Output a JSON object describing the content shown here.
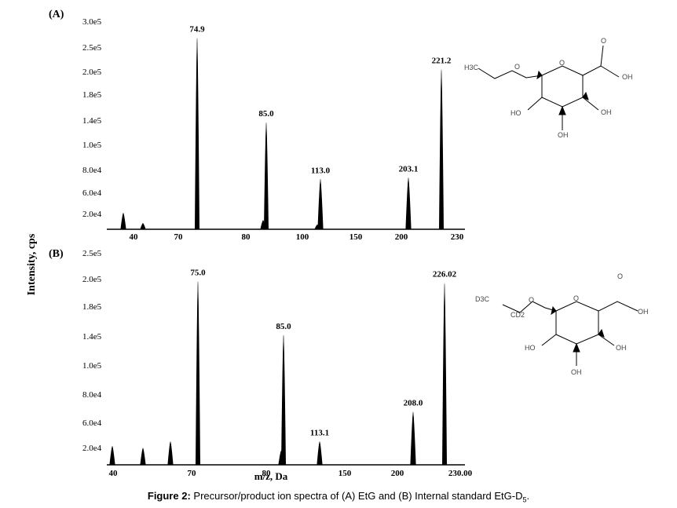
{
  "figure": {
    "ylabel": "Intensity, cps",
    "xlabel": "m/z, Da",
    "caption_label": "Figure 2:",
    "caption_text": "Precursor/product ion spectra of (A) EtG and (B) Internal standard EtG-D",
    "caption_sub": "5",
    "caption_end": "."
  },
  "chart_data": [
    {
      "type": "line",
      "panel_label": "(A)",
      "ylabel": "Intensity, cps",
      "xlabel": "m/z, Da",
      "x_tick_labels": [
        "40",
        "70",
        "80",
        "100",
        "150",
        "200",
        "230"
      ],
      "y_tick_labels": [
        "2.0e4",
        "6.0e4",
        "8.0e4",
        "1.0e5",
        "1.4e5",
        "1.8e5",
        "2.0e5",
        "2.5e5",
        "3.0e5"
      ],
      "peaks": [
        {
          "label": "",
          "value": 22000
        },
        {
          "label": "",
          "value": 8000
        },
        {
          "label": "74.9",
          "value": 260000
        },
        {
          "label": "",
          "value": 12000
        },
        {
          "label": "85.0",
          "value": 145000
        },
        {
          "label": "",
          "value": 6000
        },
        {
          "label": "113.0",
          "value": 68000
        },
        {
          "label": "203.1",
          "value": 70000
        },
        {
          "label": "221.2",
          "value": 217000
        }
      ]
    },
    {
      "type": "line",
      "panel_label": "(B)",
      "ylabel": "Intensity, cps",
      "xlabel": "m/z, Da",
      "x_tick_labels": [
        "40",
        "70",
        "80",
        "150",
        "200",
        "230.00"
      ],
      "y_tick_labels": [
        "2.0e4",
        "6.0e4",
        "8.0e4",
        "1.0e5",
        "1.4e5",
        "1.8e5",
        "2.0e5",
        "2.5e5"
      ],
      "peaks": [
        {
          "label": "",
          "value": 20000
        },
        {
          "label": "",
          "value": 18000
        },
        {
          "label": "",
          "value": 25000
        },
        {
          "label": "75.0",
          "value": 198000
        },
        {
          "label": "",
          "value": 15000
        },
        {
          "label": "85.0",
          "value": 140000
        },
        {
          "label": "113.1",
          "value": 25000
        },
        {
          "label": "208.0",
          "value": 57000
        },
        {
          "label": "226.02",
          "value": 196000
        }
      ]
    }
  ],
  "structures": [
    {
      "labels": {
        "h3c": "H3C",
        "o1": "O",
        "o2": "O",
        "o3": "O",
        "oh1": "OH",
        "ho": "HO",
        "oh2": "OH",
        "oh3": "OH"
      }
    },
    {
      "labels": {
        "d3c": "D3C",
        "cd2": "CD2",
        "o1": "O",
        "o2": "O",
        "o3": "O",
        "oh1": "OH",
        "ho": "HO",
        "oh2": "OH",
        "oh3": "OH"
      }
    }
  ]
}
